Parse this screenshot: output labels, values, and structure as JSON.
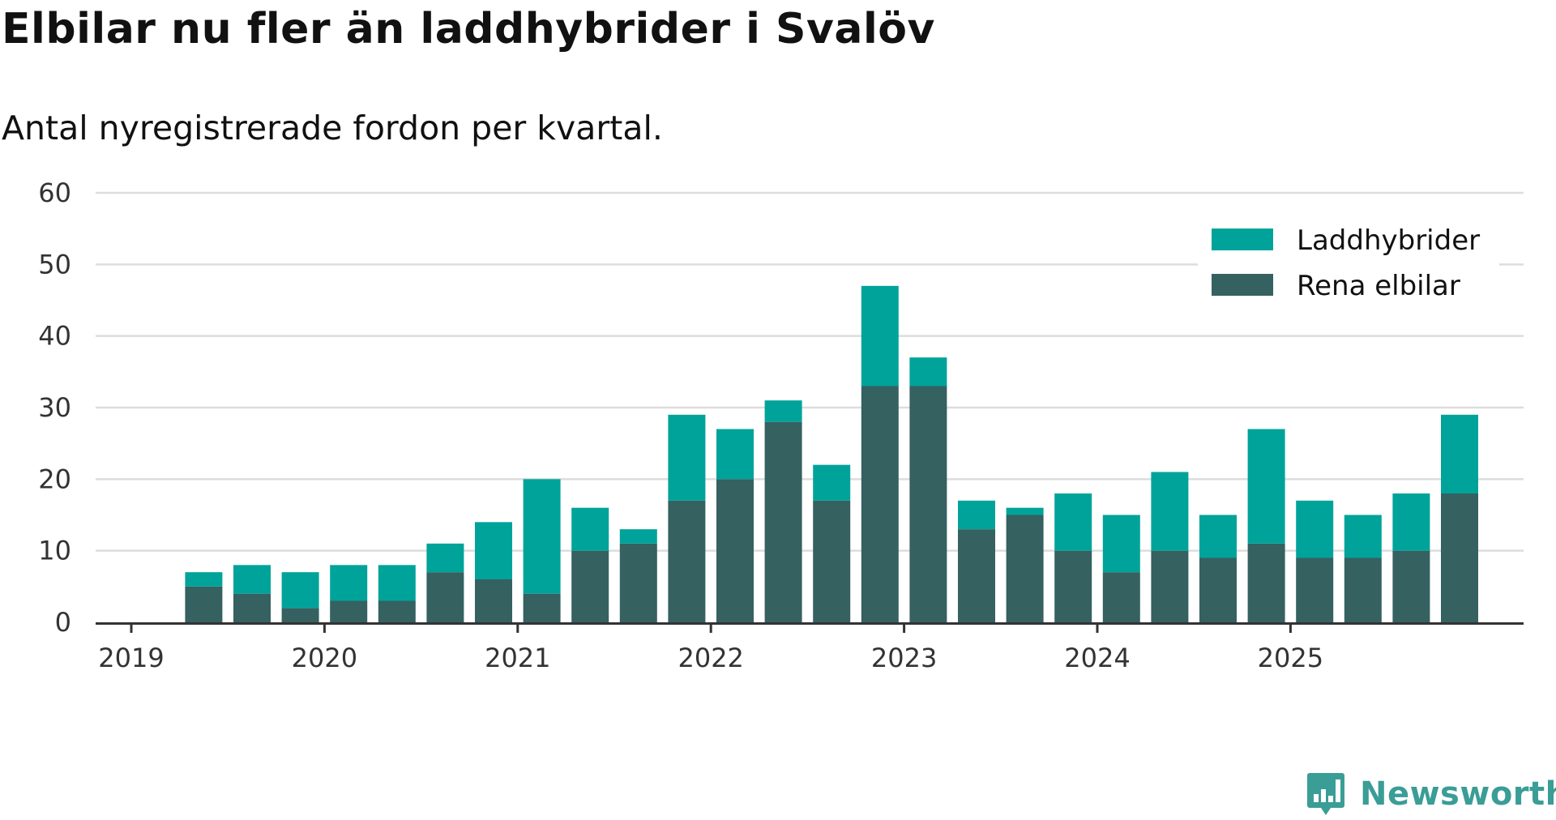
{
  "title": "Elbilar nu fler än laddhybrider i Svalöv",
  "subtitle": "Antal nyregistrerade fordon per kvartal.",
  "brand": "Newsworthy",
  "colors": {
    "laddhybrider": "#00a39a",
    "elbilar": "#356160",
    "grid": "#dddddd",
    "axis": "#333333",
    "brand": "#3a9d96"
  },
  "chart_data": {
    "type": "bar",
    "stacked": true,
    "title": "Elbilar nu fler än laddhybrider i Svalöv",
    "subtitle": "Antal nyregistrerade fordon per kvartal.",
    "xlabel": "",
    "ylabel": "",
    "ylim": [
      0,
      60
    ],
    "yticks": [
      "0",
      "10",
      "20",
      "30",
      "40",
      "50",
      "60"
    ],
    "xticks": [
      "2019",
      "2020",
      "2021",
      "2022",
      "2023",
      "2024",
      "2025"
    ],
    "grid": true,
    "legend_position": "top-right",
    "categories": [
      "2019 Q2",
      "2019 Q3",
      "2019 Q4",
      "2020 Q1",
      "2020 Q2",
      "2020 Q3",
      "2020 Q4",
      "2021 Q1",
      "2021 Q2",
      "2021 Q3",
      "2021 Q4",
      "2022 Q1",
      "2022 Q2",
      "2022 Q3",
      "2022 Q4",
      "2023 Q1",
      "2023 Q2",
      "2023 Q3",
      "2023 Q4",
      "2024 Q1",
      "2024 Q2",
      "2024 Q3",
      "2024 Q4",
      "2025 Q1",
      "2025 Q2",
      "2025 Q3",
      "2025 Q4"
    ],
    "series": [
      {
        "name": "Rena elbilar",
        "color": "#356160",
        "values": [
          5,
          4,
          2,
          3,
          3,
          7,
          6,
          4,
          10,
          11,
          17,
          20,
          28,
          17,
          33,
          33,
          13,
          15,
          10,
          7,
          10,
          9,
          11,
          9,
          9,
          10,
          18
        ]
      },
      {
        "name": "Laddhybrider",
        "color": "#00a39a",
        "values": [
          2,
          4,
          5,
          5,
          5,
          4,
          8,
          16,
          6,
          2,
          12,
          7,
          3,
          5,
          14,
          4,
          4,
          1,
          8,
          8,
          11,
          6,
          16,
          8,
          6,
          8,
          11
        ]
      }
    ]
  }
}
